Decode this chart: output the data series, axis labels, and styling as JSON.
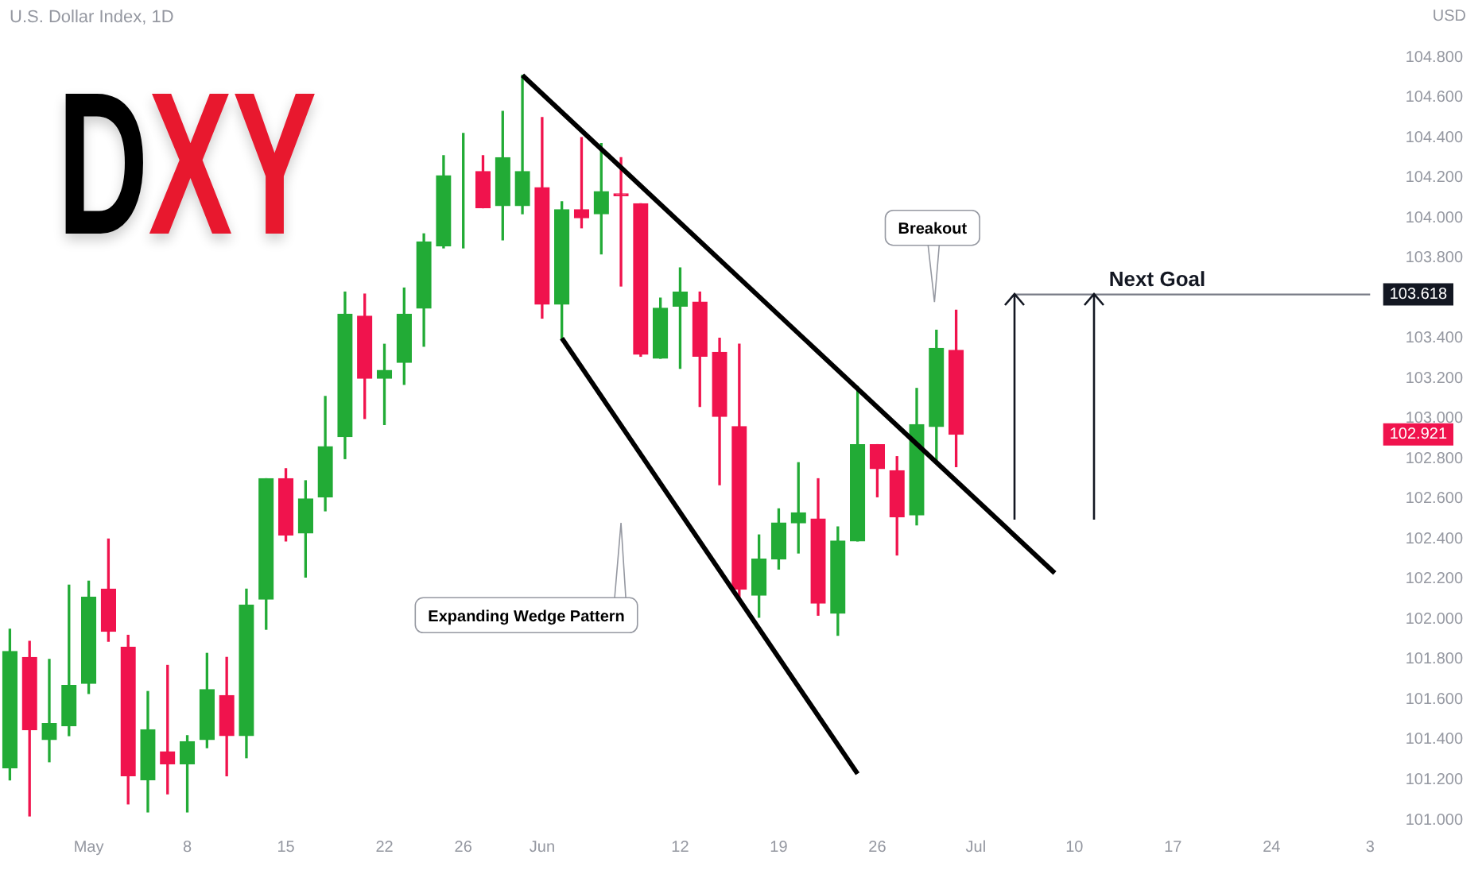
{
  "chart_data": {
    "type": "candlestick",
    "title": "DXY",
    "subtitle": "U.S. Dollar Index, 1D",
    "ylabel": "USD",
    "categories": [
      null,
      null,
      null,
      null,
      "May",
      null,
      null,
      null,
      null,
      "8",
      null,
      null,
      null,
      null,
      "15",
      null,
      null,
      null,
      null,
      "22",
      null,
      null,
      null,
      "26",
      null,
      null,
      null,
      "Jun",
      null,
      null,
      null,
      null,
      null,
      null,
      "12",
      null,
      null,
      null,
      null,
      "19",
      null,
      null,
      null,
      null,
      "26",
      null,
      null,
      null,
      null,
      "Jul",
      null,
      null,
      null,
      null,
      "10",
      null,
      null,
      null,
      null,
      "17",
      null,
      null,
      null,
      null,
      "24",
      null,
      null,
      null,
      null,
      "3"
    ],
    "ohlc": [
      [
        101.26,
        101.95,
        101.2,
        101.84
      ],
      [
        101.81,
        101.89,
        101.02,
        101.45
      ],
      [
        101.4,
        101.8,
        101.29,
        101.48
      ],
      [
        101.47,
        102.17,
        101.42,
        101.67
      ],
      [
        101.68,
        102.19,
        101.63,
        102.11
      ],
      [
        102.15,
        102.4,
        101.89,
        101.94
      ],
      [
        101.86,
        101.92,
        101.08,
        101.22
      ],
      [
        101.2,
        101.64,
        101.04,
        101.45
      ],
      [
        101.34,
        101.77,
        101.13,
        101.28
      ],
      [
        101.28,
        101.42,
        101.04,
        101.39
      ],
      [
        101.4,
        101.83,
        101.36,
        101.65
      ],
      [
        101.62,
        101.81,
        101.22,
        101.42
      ],
      [
        101.42,
        102.15,
        101.31,
        102.07
      ],
      [
        102.1,
        102.7,
        101.95,
        102.7
      ],
      [
        102.7,
        102.75,
        102.39,
        102.42
      ],
      [
        102.43,
        102.69,
        102.21,
        102.6
      ],
      [
        102.61,
        103.11,
        102.54,
        102.86
      ],
      [
        102.91,
        103.63,
        102.8,
        103.52
      ],
      [
        103.51,
        103.62,
        103.0,
        103.2
      ],
      [
        103.2,
        103.37,
        102.97,
        103.24
      ],
      [
        103.28,
        103.65,
        103.17,
        103.52
      ],
      [
        103.55,
        103.92,
        103.36,
        103.88
      ],
      [
        103.86,
        104.31,
        103.85,
        104.21
      ],
      [
        104.23,
        104.42,
        103.85,
        104.23
      ],
      [
        104.23,
        104.31,
        104.05,
        104.05
      ],
      [
        104.06,
        104.53,
        103.89,
        104.3
      ],
      [
        104.06,
        104.71,
        104.02,
        104.23
      ],
      [
        104.15,
        104.5,
        103.5,
        103.57
      ],
      [
        103.57,
        104.08,
        103.39,
        104.04
      ],
      [
        104.04,
        104.4,
        103.95,
        104.0
      ],
      [
        104.02,
        104.37,
        103.82,
        104.13
      ],
      [
        104.12,
        104.3,
        103.66,
        104.11
      ],
      [
        104.07,
        104.07,
        103.31,
        103.32
      ],
      [
        103.3,
        103.6,
        103.3,
        103.55
      ],
      [
        103.56,
        103.75,
        103.25,
        103.63
      ],
      [
        103.58,
        103.63,
        103.06,
        103.31
      ],
      [
        103.33,
        103.4,
        102.67,
        103.01
      ],
      [
        102.96,
        103.37,
        102.11,
        102.15
      ],
      [
        102.12,
        102.42,
        102.01,
        102.3
      ],
      [
        102.3,
        102.55,
        102.25,
        102.48
      ],
      [
        102.48,
        102.78,
        102.33,
        102.53
      ],
      [
        102.5,
        102.7,
        102.02,
        102.08
      ],
      [
        102.03,
        102.46,
        101.92,
        102.39
      ],
      [
        102.39,
        103.16,
        102.39,
        102.87
      ],
      [
        102.87,
        102.87,
        102.61,
        102.75
      ],
      [
        102.74,
        102.81,
        102.32,
        102.51
      ],
      [
        102.52,
        103.15,
        102.47,
        102.97
      ],
      [
        102.96,
        103.44,
        102.78,
        103.35
      ],
      [
        103.34,
        103.54,
        102.76,
        102.921
      ],
      null,
      null,
      null,
      null,
      null,
      null,
      null,
      null,
      null,
      null,
      null,
      null,
      null,
      null,
      null,
      null,
      null,
      null,
      null,
      null,
      null
    ],
    "colors": [
      "#22ab36",
      "#f0134d",
      "#22ab36",
      "#22ab36",
      "#22ab36",
      "#f0134d",
      "#f0134d",
      "#22ab36",
      "#f0134d",
      "#22ab36",
      "#22ab36",
      "#f0134d",
      "#22ab36",
      "#22ab36",
      "#f0134d",
      "#22ab36",
      "#22ab36",
      "#22ab36",
      "#f0134d",
      "#22ab36",
      "#22ab36",
      "#22ab36",
      "#22ab36",
      "#22ab36",
      "#f0134d",
      "#22ab36",
      "#22ab36",
      "#f0134d",
      "#22ab36",
      "#f0134d",
      "#22ab36",
      "#f0134d",
      "#f0134d",
      "#22ab36",
      "#22ab36",
      "#f0134d",
      "#f0134d",
      "#f0134d",
      "#22ab36",
      "#22ab36",
      "#22ab36",
      "#f0134d",
      "#22ab36",
      "#22ab36",
      "#f0134d",
      "#f0134d",
      "#22ab36",
      "#22ab36",
      "#f0134d",
      null,
      null,
      null,
      null,
      null,
      null,
      null,
      null,
      null,
      null,
      null,
      null,
      null,
      null,
      null,
      null,
      null,
      null,
      null,
      null,
      null
    ],
    "series": [
      {
        "type": "line",
        "color": "#000000",
        "values": [
          null,
          null,
          null,
          null,
          null,
          null,
          null,
          null,
          null,
          null,
          null,
          null,
          null,
          null,
          null,
          null,
          null,
          null,
          null,
          null,
          null,
          null,
          null,
          null,
          null,
          null,
          104.71,
          null,
          null,
          null,
          null,
          null,
          null,
          null,
          null,
          null,
          null,
          null,
          null,
          null,
          null,
          null,
          null,
          null,
          null,
          null,
          null,
          null,
          null,
          null,
          null,
          null,
          null,
          102.23,
          null,
          null,
          null,
          null,
          null,
          null,
          null,
          null,
          null,
          null,
          null,
          null,
          null,
          null,
          null,
          null
        ]
      },
      {
        "type": "line",
        "color": "#000000",
        "values": [
          null,
          null,
          null,
          null,
          null,
          null,
          null,
          null,
          null,
          null,
          null,
          null,
          null,
          null,
          null,
          null,
          null,
          null,
          null,
          null,
          null,
          null,
          null,
          null,
          null,
          null,
          null,
          null,
          103.4,
          null,
          null,
          null,
          null,
          null,
          null,
          null,
          null,
          null,
          null,
          null,
          null,
          null,
          null,
          101.23,
          null,
          null,
          null,
          null,
          null,
          null,
          null,
          null,
          null,
          null,
          null,
          null,
          null,
          null,
          null,
          null,
          null,
          null,
          null,
          null,
          null,
          null,
          null,
          null,
          null,
          null
        ]
      },
      {
        "type": "line",
        "color": "#787b86",
        "values": [
          null,
          null,
          null,
          null,
          null,
          null,
          null,
          null,
          null,
          null,
          null,
          null,
          null,
          null,
          null,
          null,
          null,
          null,
          null,
          null,
          null,
          null,
          null,
          null,
          null,
          null,
          null,
          null,
          null,
          null,
          null,
          null,
          null,
          null,
          null,
          null,
          null,
          null,
          null,
          null,
          null,
          null,
          null,
          null,
          null,
          null,
          null,
          null,
          null,
          null,
          null,
          103.618,
          103.618,
          103.618,
          103.618,
          103.618,
          103.618,
          103.618,
          103.618,
          103.618,
          103.618,
          103.618,
          103.618,
          103.618,
          103.618,
          103.618,
          103.618,
          103.618,
          103.618,
          103.618
        ]
      }
    ],
    "ylim": [
      101,
      104.8
    ],
    "yticks": [
      {
        "value": 101,
        "label": "101.000"
      },
      {
        "value": 101.2,
        "label": "101.200"
      },
      {
        "value": 101.4,
        "label": "101.400"
      },
      {
        "value": 101.6,
        "label": "101.600"
      },
      {
        "value": 101.8,
        "label": "101.800"
      },
      {
        "value": 102,
        "label": "102.000"
      },
      {
        "value": 102.2,
        "label": "102.200"
      },
      {
        "value": 102.4,
        "label": "102.400"
      },
      {
        "value": 102.6,
        "label": "102.600"
      },
      {
        "value": 102.8,
        "label": "102.800"
      },
      {
        "value": 103,
        "label": "103.000"
      },
      {
        "value": 103.2,
        "label": "103.200"
      },
      {
        "value": 103.4,
        "label": "103.400"
      },
      {
        "value": 103.8,
        "label": "103.800"
      },
      {
        "value": 104,
        "label": "104.000"
      },
      {
        "value": 104.2,
        "label": "104.200"
      },
      {
        "value": 104.4,
        "label": "104.400"
      },
      {
        "value": 104.6,
        "label": "104.600"
      },
      {
        "value": 104.8,
        "label": "104.800"
      }
    ],
    "annotations": [
      "Expanding Wedge Pattern",
      "Breakout",
      "Next Goal",
      "103.618",
      "102.921"
    ],
    "grid": false,
    "legend": false
  }
}
